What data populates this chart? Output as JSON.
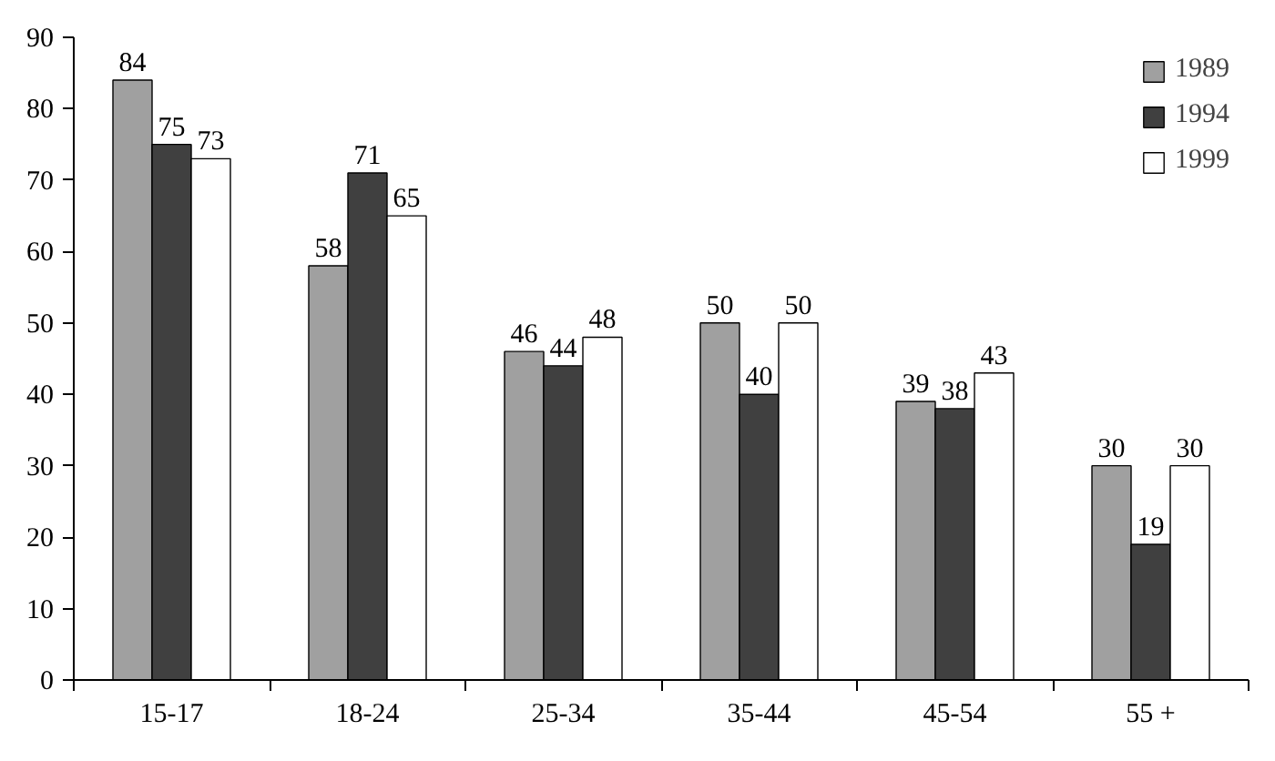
{
  "chart_data": {
    "type": "bar",
    "categories": [
      "15-17",
      "18-24",
      "25-34",
      "35-44",
      "45-54",
      "55 +"
    ],
    "series": [
      {
        "name": "1989",
        "color": "#a0a0a0",
        "values": [
          84,
          58,
          46,
          50,
          39,
          30
        ]
      },
      {
        "name": "1994",
        "color": "#404040",
        "values": [
          75,
          71,
          44,
          40,
          38,
          19
        ]
      },
      {
        "name": "1999",
        "color": "#ffffff",
        "values": [
          73,
          65,
          48,
          50,
          43,
          30
        ]
      }
    ],
    "ylim": [
      0,
      90
    ],
    "yticks": [
      0,
      10,
      20,
      30,
      40,
      50,
      60,
      70,
      80,
      90
    ],
    "data_labels": true,
    "legend": "top right",
    "grid": false
  }
}
